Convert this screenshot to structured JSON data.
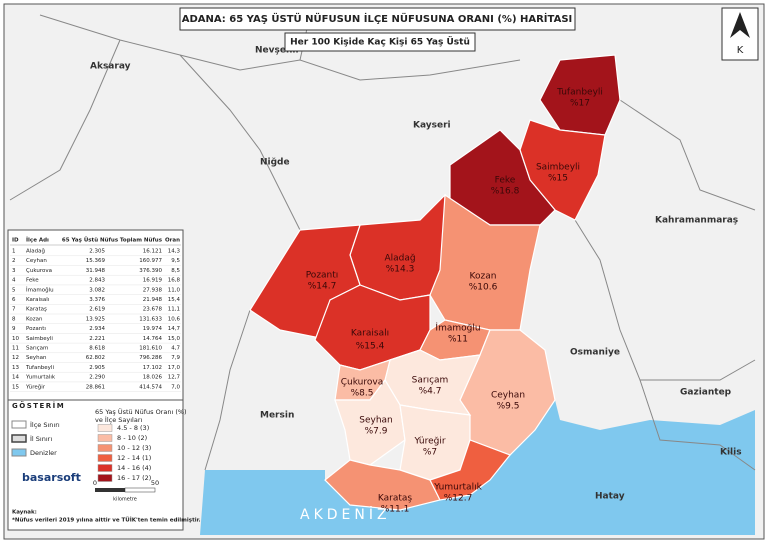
{
  "title": "ADANA: 65 YAŞ ÜSTÜ NÜFUSUN İLÇE NÜFUSUNA ORANI (%) HARİTASI",
  "subtitle": "Her 100 Kişide Kaç Kişi 65 Yaş Üstü",
  "north": "K",
  "regions": [
    "Nevşehir",
    "Aksaray",
    "Kayseri",
    "Niğde",
    "Kahramanmaraş",
    "Osmaniye",
    "Gaziantep",
    "Kilis",
    "Hatay",
    "Mersin"
  ],
  "sea": "AKDENİZ",
  "districts": [
    {
      "name": "Tufanbeyli",
      "label": "%17",
      "color": "#a3141b"
    },
    {
      "name": "Saimbeyli",
      "label": "%15",
      "color": "#db3127"
    },
    {
      "name": "Feke",
      "label": "%16.8",
      "color": "#a3141b"
    },
    {
      "name": "Kozan",
      "label": "%10.6",
      "color": "#f59273"
    },
    {
      "name": "Aladağ",
      "label": "%14.3",
      "color": "#db3127"
    },
    {
      "name": "Pozantı",
      "label": "%14.7",
      "color": "#db3127"
    },
    {
      "name": "Karaisalı",
      "label": "%15.4",
      "color": "#db3127"
    },
    {
      "name": "İmamoğlu",
      "label": "%11",
      "color": "#f59273"
    },
    {
      "name": "Ceyhan",
      "label": "%9.5",
      "color": "#fbbca5"
    },
    {
      "name": "Sarıçam",
      "label": "%4.7",
      "color": "#fde8dd"
    },
    {
      "name": "Çukurova",
      "label": "%8.5",
      "color": "#fbbca5"
    },
    {
      "name": "Seyhan",
      "label": "%7.9",
      "color": "#fde8dd"
    },
    {
      "name": "Yüreğir",
      "label": "%7",
      "color": "#fde8dd"
    },
    {
      "name": "Karataş",
      "label": "%11.1",
      "color": "#f59273"
    },
    {
      "name": "Yumurtalık",
      "label": "%12.7",
      "color": "#ef5f40"
    }
  ],
  "table": {
    "header": [
      "ID",
      "İlçe Adı",
      "65 Yaş Üstü Nüfus",
      "Toplam Nüfus",
      "Oran"
    ],
    "rows": [
      [
        "1",
        "Aladağ",
        "2.305",
        "16.121",
        "14,3"
      ],
      [
        "2",
        "Ceyhan",
        "15.369",
        "160.977",
        "9,5"
      ],
      [
        "3",
        "Çukurova",
        "31.948",
        "376.390",
        "8,5"
      ],
      [
        "4",
        "Feke",
        "2.843",
        "16.919",
        "16,8"
      ],
      [
        "5",
        "İmamoğlu",
        "3.082",
        "27.938",
        "11,0"
      ],
      [
        "6",
        "Karaisalı",
        "3.376",
        "21.948",
        "15,4"
      ],
      [
        "7",
        "Karataş",
        "2.619",
        "23.678",
        "11,1"
      ],
      [
        "8",
        "Kozan",
        "13.925",
        "131.633",
        "10,6"
      ],
      [
        "9",
        "Pozantı",
        "2.934",
        "19.974",
        "14,7"
      ],
      [
        "10",
        "Saimbeyli",
        "2.221",
        "14.764",
        "15,0"
      ],
      [
        "11",
        "Sarıçam",
        "8.618",
        "181.610",
        "4,7"
      ],
      [
        "12",
        "Seyhan",
        "62.802",
        "796.286",
        "7,9"
      ],
      [
        "13",
        "Tufanbeyli",
        "2.905",
        "17.102",
        "17,0"
      ],
      [
        "14",
        "Yumurtalık",
        "2.290",
        "18.026",
        "12,7"
      ],
      [
        "15",
        "Yüreğir",
        "28.861",
        "414.574",
        "7,0"
      ]
    ]
  },
  "legend": {
    "title": "GÖSTERİM",
    "items": [
      "İlçe Sınırı",
      "İl Sınırı",
      "Denizler"
    ],
    "class_title": [
      "65 Yaş Üstü Nüfus Oranı (%)",
      "ve İlçe Sayıları"
    ],
    "classes": [
      {
        "label": "4.5 - 8 (3)",
        "color": "#fde8dd"
      },
      {
        "label": "8 - 10 (2)",
        "color": "#fbbca5"
      },
      {
        "label": "10 - 12 (3)",
        "color": "#f59273"
      },
      {
        "label": "12 - 14 (1)",
        "color": "#ef5f40"
      },
      {
        "label": "14 - 16 (4)",
        "color": "#db3127"
      },
      {
        "label": "16 - 17 (2)",
        "color": "#a3141b"
      }
    ]
  },
  "logo": "basarsoft",
  "scale": {
    "ticks": [
      "0",
      "50"
    ],
    "unit": "kilometre"
  },
  "source": {
    "title": "Kaynak:",
    "note": "*Nüfus verileri 2019 yılına aittir ve TÜİK'ten temin edilmiştir."
  }
}
